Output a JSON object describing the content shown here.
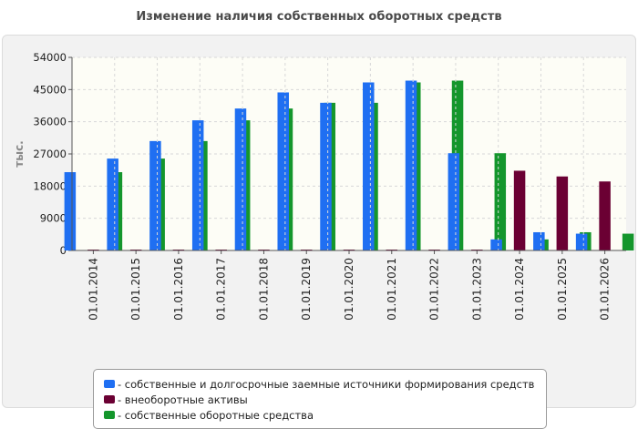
{
  "colors": {
    "sources": "#1f6ff2",
    "noncurrent": "#6b0033",
    "own": "#14962c",
    "plot_bg": "#fdfdf6",
    "grid": "#d8d8d8"
  },
  "chart_data": {
    "type": "bar",
    "title": "Изменение наличия собственных оборотных средств",
    "ylabel": "тыс.",
    "xlabel": "",
    "ylim": [
      0,
      54000
    ],
    "yticks": [
      "0",
      "9000",
      "18000",
      "27000",
      "36000",
      "45000",
      "54000"
    ],
    "grid": true,
    "legend_position": "bottom",
    "categories": [
      "01.01.2014",
      "01.01.2015",
      "01.01.2016",
      "01.01.2017",
      "01.01.2018",
      "01.01.2019",
      "01.01.2020",
      "01.01.2021",
      "01.01.2022",
      "01.01.2023",
      "01.01.2024",
      "01.01.2025",
      "01.01.2026"
    ],
    "series": [
      {
        "name": "- собственные и долгосрочные заемные источники формирования средств",
        "color_key": "sources",
        "values": [
          21900,
          25700,
          30600,
          36400,
          39700,
          44200,
          41300,
          47000,
          47500,
          27200,
          3100,
          5100,
          4700
        ]
      },
      {
        "name": "- внеоборотные активы",
        "color_key": "noncurrent",
        "values": [
          250,
          250,
          250,
          250,
          250,
          250,
          250,
          250,
          250,
          250,
          22300,
          20700,
          19300
        ]
      },
      {
        "name": "- собственные оборотные средства",
        "color_key": "own",
        "values": [
          21900,
          25700,
          30600,
          36400,
          39700,
          41300,
          41300,
          47000,
          47500,
          27200,
          3100,
          5100,
          4700
        ]
      }
    ]
  }
}
